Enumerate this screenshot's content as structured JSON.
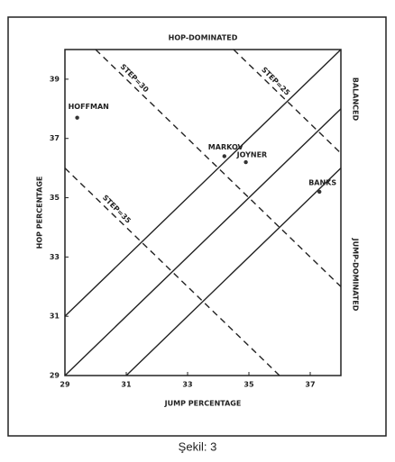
{
  "chart_data": {
    "type": "scatter",
    "title": "HOP-DOMINATED",
    "x_label": "JUMP PERCENTAGE",
    "y_label": "HOP PERCENTAGE",
    "annotations": [
      "BALANCED",
      "JUMP-DOMINATED"
    ],
    "xlim": [
      29,
      38
    ],
    "ylim": [
      29,
      40
    ],
    "xticks": [
      29,
      31,
      33,
      35,
      37
    ],
    "yticks": [
      29,
      31,
      33,
      35,
      37,
      39
    ],
    "grid": false,
    "color": "#333333",
    "points": {
      "labels": [
        "HOFFMAN",
        "MARKOV",
        "JOYNER",
        "BANKS"
      ],
      "x": [
        29.4,
        34.2,
        34.9,
        37.3
      ],
      "y": [
        37.7,
        36.4,
        36.2,
        35.2
      ]
    },
    "lines": [
      {
        "style": "solid",
        "x": [
          29,
          38
        ],
        "y": [
          31,
          40
        ]
      },
      {
        "style": "solid",
        "x": [
          29,
          38
        ],
        "y": [
          29,
          38
        ]
      },
      {
        "style": "solid",
        "x": [
          31,
          38
        ],
        "y": [
          29,
          36
        ]
      },
      {
        "style": "dashed",
        "label": "STEP=35",
        "x": [
          29,
          36
        ],
        "y": [
          36,
          29
        ]
      },
      {
        "style": "dashed",
        "label": "STEP=30",
        "x": [
          30,
          38
        ],
        "y": [
          40,
          32
        ]
      },
      {
        "style": "dashed",
        "label": "STEP=25",
        "x": [
          34.5,
          38
        ],
        "y": [
          40,
          36.5
        ]
      }
    ]
  },
  "caption": "Şekil: 3"
}
